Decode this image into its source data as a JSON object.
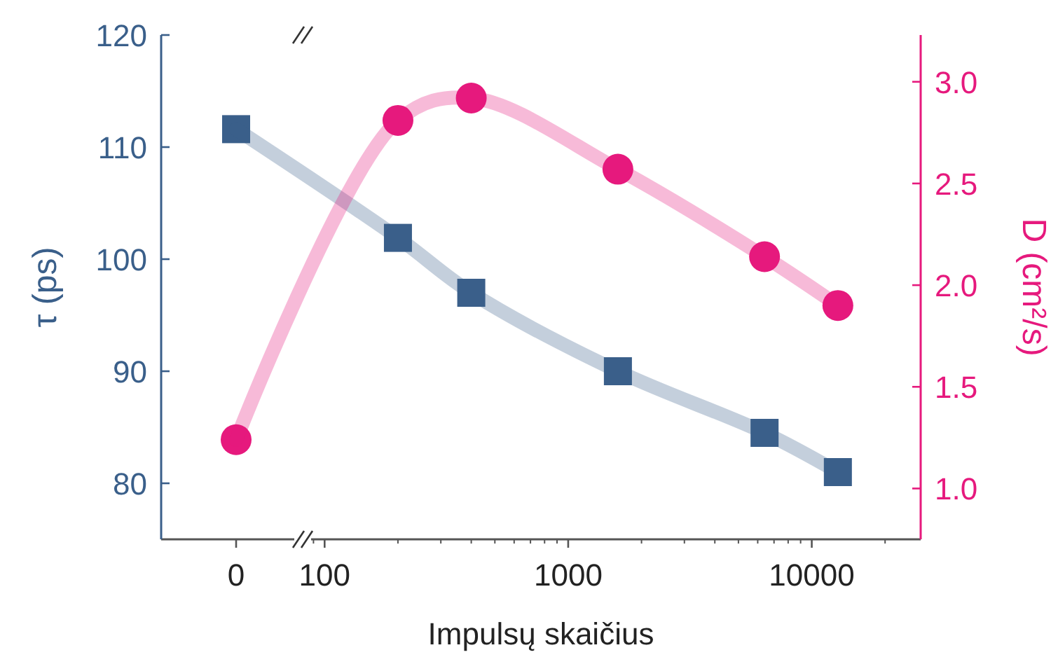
{
  "chart_data": [
    {
      "type": "line",
      "ylabel": "τ (ps)",
      "categories": [
        "0"
      ],
      "ylim": [
        75,
        120
      ],
      "yticks": [
        80,
        90,
        100,
        110,
        120
      ],
      "y2lim": [
        0.75,
        3.23
      ],
      "series": [
        {
          "color": "#3a5f8a",
          "marker": "square",
          "values": [
            111.6
          ]
        },
        {
          "color": "#e6197d",
          "marker": "circle",
          "axis": "y2",
          "values": [
            1.24
          ]
        }
      ],
      "grid": false
    },
    {
      "type": "line",
      "xlabel": "Impulsų skaičius",
      "y2label": "D (cm²/s)",
      "x": [
        200,
        400,
        1600,
        6400,
        12800
      ],
      "log": "x",
      "xlim": [
        88,
        28000
      ],
      "xticks": [
        100,
        1000,
        10000
      ],
      "ylim": [
        75,
        120
      ],
      "y2lim": [
        0.75,
        3.23
      ],
      "y2ticks": [
        {
          "value": 1,
          "label": "1.0"
        },
        1.5,
        {
          "value": 2,
          "label": "2.0"
        },
        2.5,
        {
          "value": 3,
          "label": "3.0"
        }
      ],
      "series": [
        {
          "color": "#3a5f8a",
          "marker": "square",
          "values": [
            101.9,
            97.0,
            90.0,
            84.5,
            81.0
          ]
        },
        {
          "color": "#e6197d",
          "marker": "circle",
          "axis": "y2",
          "values": [
            2.81,
            2.92,
            2.57,
            2.14,
            1.9
          ]
        }
      ],
      "grid": false
    }
  ]
}
